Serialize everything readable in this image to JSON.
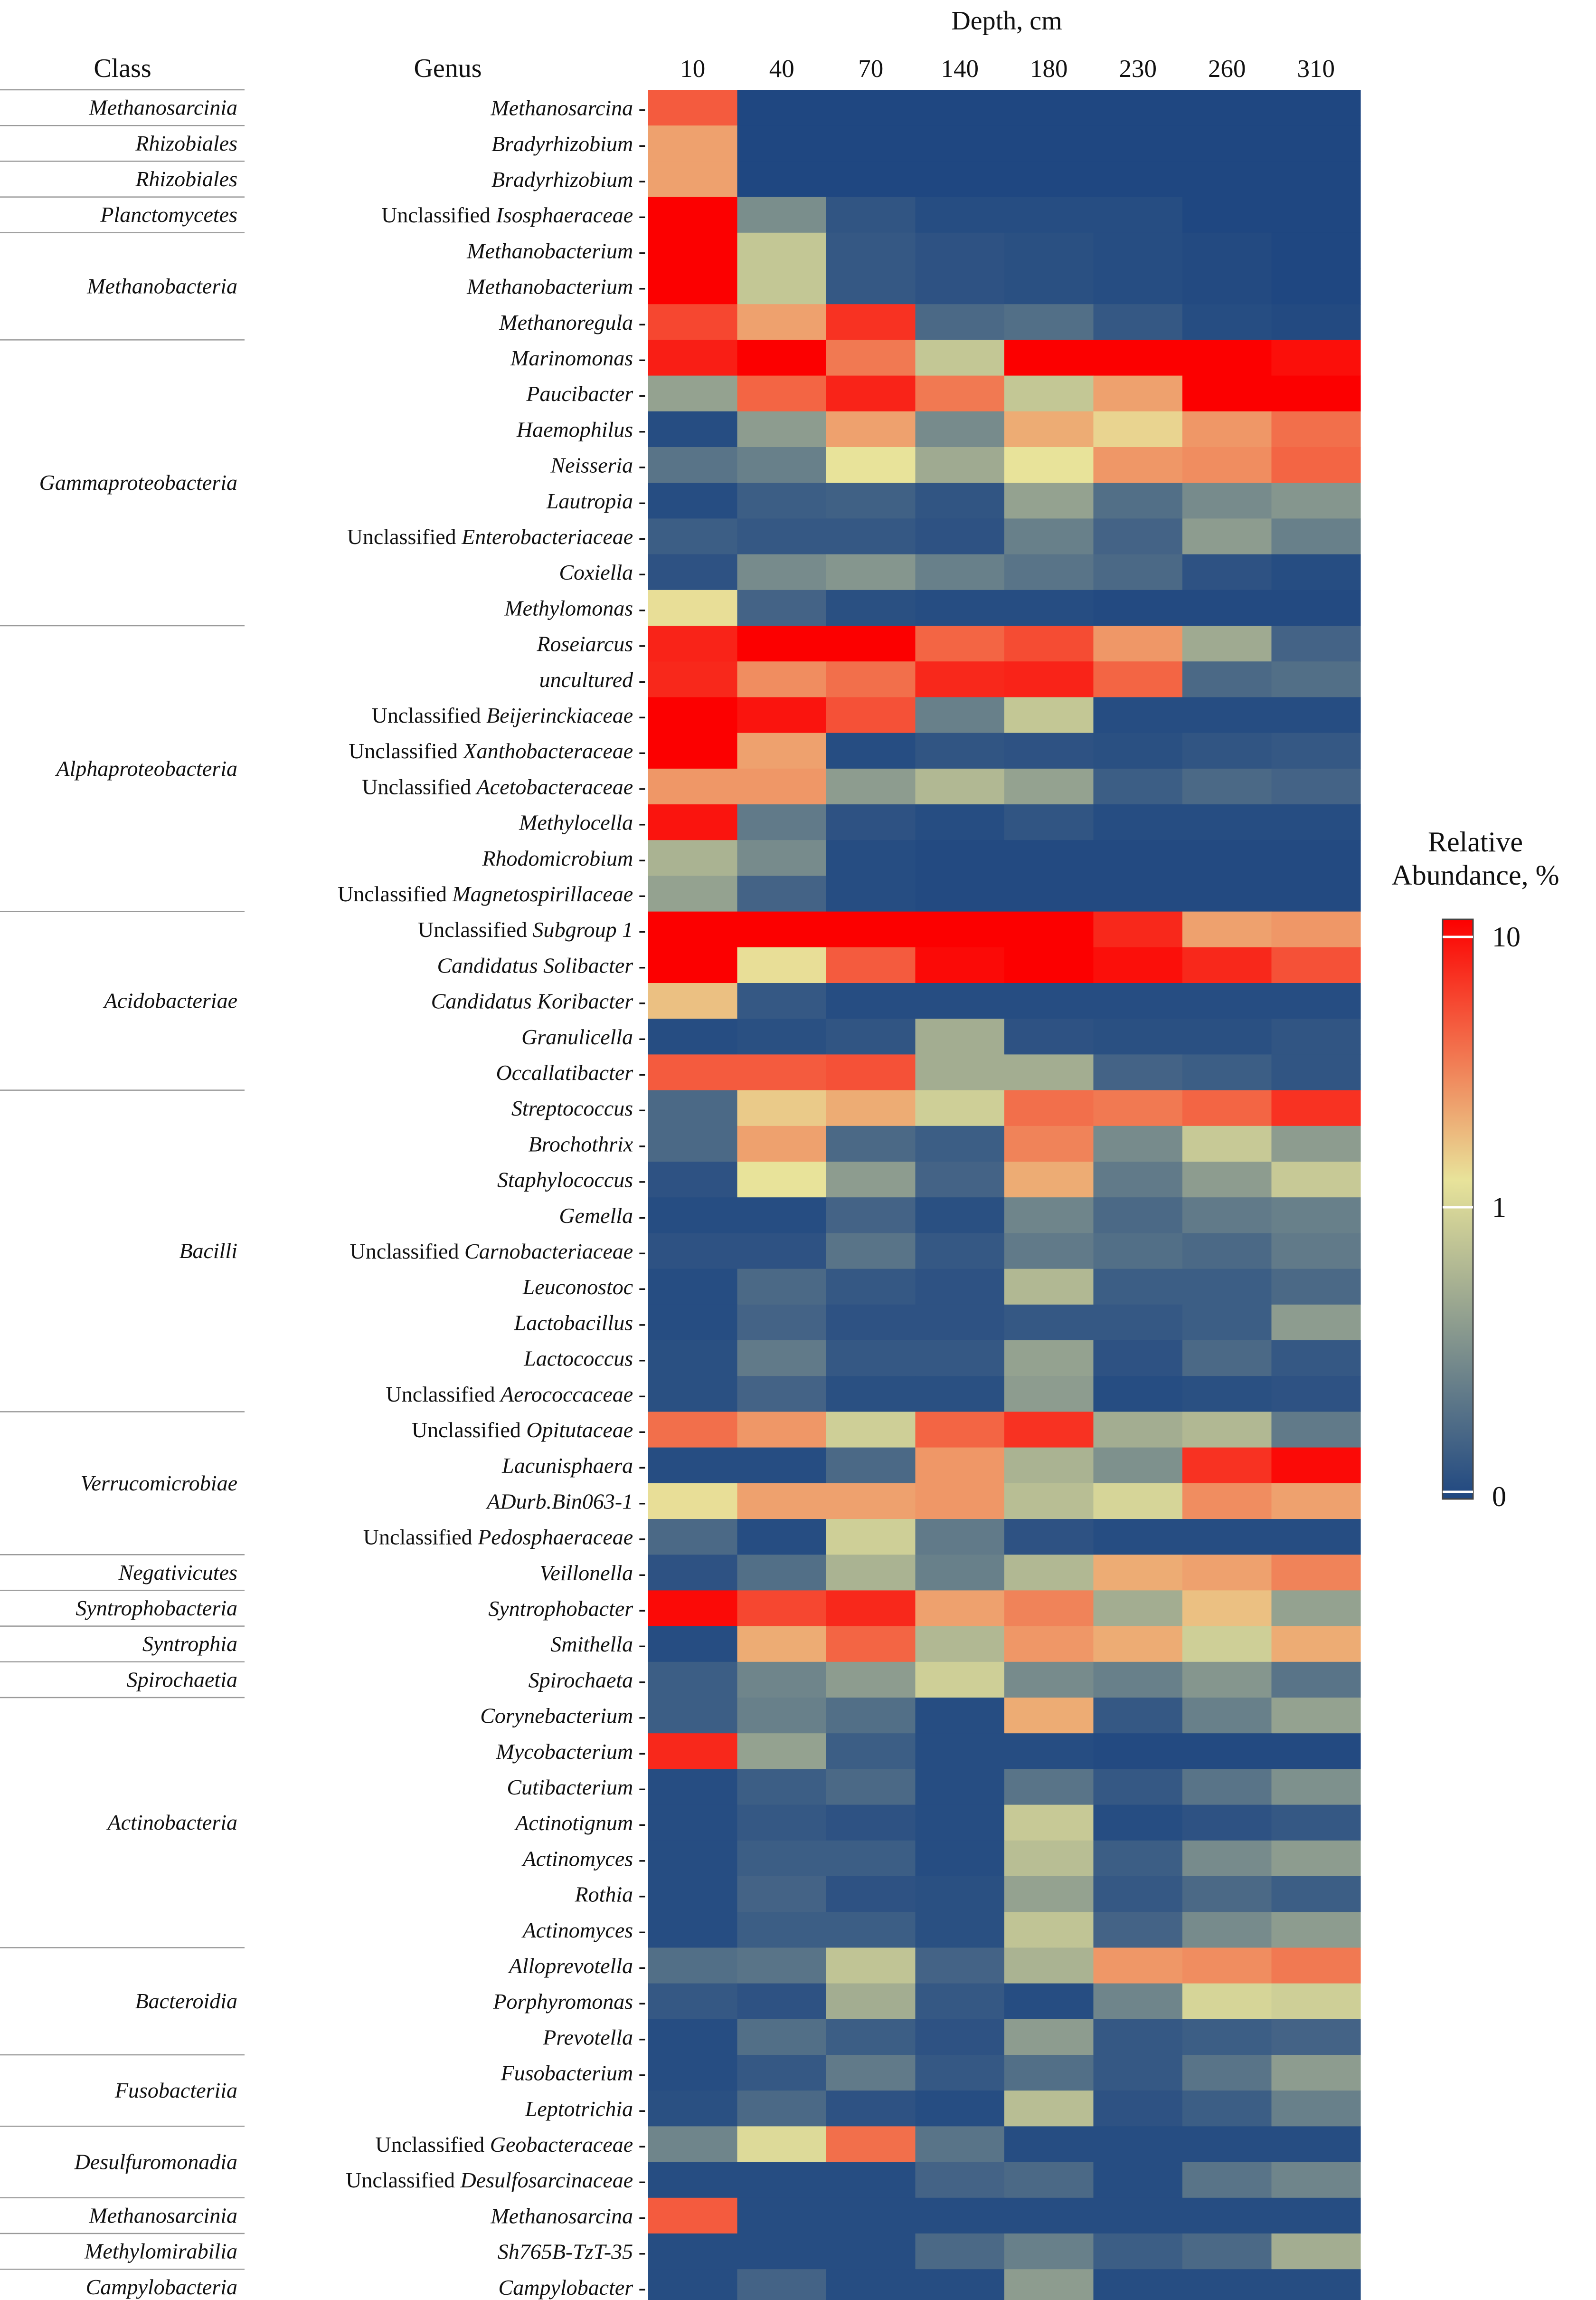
{
  "chart_data": {
    "type": "heatmap",
    "title": "Depth, cm",
    "class_header": "Class",
    "genus_header": "Genus",
    "x": [
      "10",
      "40",
      "70",
      "140",
      "180",
      "230",
      "260",
      "310"
    ],
    "legend": {
      "title_line1": "Relative",
      "title_line2": "Abundance, %",
      "ticks": [
        "10",
        "1",
        "0"
      ],
      "colors": [
        "#1f4781",
        "#e8e39a",
        "#fc0000"
      ]
    },
    "classes": [
      {
        "name": "Methanosarcinia",
        "rows": 1
      },
      {
        "name": "Rhizobiales",
        "rows": 1
      },
      {
        "name": "Rhizobiales",
        "rows": 1
      },
      {
        "name": "Planctomycetes",
        "rows": 1
      },
      {
        "name": "Methanobacteria",
        "rows": 3
      },
      {
        "name": "Gammaproteobacteria",
        "rows": 8
      },
      {
        "name": "Alphaproteobacteria",
        "rows": 8
      },
      {
        "name": "Acidobacteriae",
        "rows": 5
      },
      {
        "name": "Bacilli",
        "rows": 9
      },
      {
        "name": "Verrucomicrobiae",
        "rows": 4
      },
      {
        "name": "Negativicutes",
        "rows": 1
      },
      {
        "name": "Syntrophobacteria",
        "rows": 1
      },
      {
        "name": "Syntrophia",
        "rows": 1
      },
      {
        "name": "Spirochaetia",
        "rows": 1
      },
      {
        "name": "Actinobacteria",
        "rows": 7
      },
      {
        "name": "Bacteroidia",
        "rows": 3
      },
      {
        "name": "Fusobacteriia",
        "rows": 2
      },
      {
        "name": "Desulfuromonadia",
        "rows": 2
      },
      {
        "name": "Methanosarcinia",
        "rows": 1
      },
      {
        "name": "Methylomirabilia",
        "rows": 1
      },
      {
        "name": "Campylobacteria",
        "rows": 1
      }
    ],
    "rows": [
      {
        "prefix": "",
        "genus": "Methanosarcina",
        "values": [
          0.82,
          0,
          0,
          0,
          0,
          0,
          0,
          0
        ]
      },
      {
        "prefix": "",
        "genus": "Bradyrhizobium",
        "values": [
          0.68,
          0,
          0,
          0,
          0,
          0,
          0,
          0
        ]
      },
      {
        "prefix": "",
        "genus": "Bradyrhizobium",
        "values": [
          0.68,
          0,
          0,
          0,
          0,
          0,
          0,
          0
        ]
      },
      {
        "prefix": "Unclassified ",
        "genus": "Isosphaeraceae",
        "values": [
          1.0,
          0.25,
          0.05,
          0.02,
          0.02,
          0.02,
          0.0,
          0.0
        ]
      },
      {
        "prefix": "",
        "genus": "Methanobacterium",
        "values": [
          1.0,
          0.45,
          0.06,
          0.04,
          0.03,
          0.02,
          0.01,
          0.0
        ]
      },
      {
        "prefix": "",
        "genus": "Methanobacterium",
        "values": [
          1.0,
          0.45,
          0.06,
          0.04,
          0.03,
          0.02,
          0.01,
          0.0
        ]
      },
      {
        "prefix": "",
        "genus": "Methanoregula",
        "values": [
          0.86,
          0.68,
          0.9,
          0.12,
          0.14,
          0.06,
          0.02,
          0.01
        ]
      },
      {
        "prefix": "",
        "genus": "Marinomonas",
        "values": [
          0.94,
          1.0,
          0.76,
          0.45,
          1.0,
          1.0,
          1.0,
          0.97
        ]
      },
      {
        "prefix": "",
        "genus": "Paucibacter",
        "values": [
          0.32,
          0.8,
          0.93,
          0.76,
          0.45,
          0.68,
          1.0,
          1.0
        ]
      },
      {
        "prefix": "",
        "genus": "Haemophilus",
        "values": [
          0.02,
          0.3,
          0.68,
          0.24,
          0.66,
          0.58,
          0.7,
          0.78
        ]
      },
      {
        "prefix": "",
        "genus": "Neisseria",
        "values": [
          0.16,
          0.2,
          0.55,
          0.35,
          0.55,
          0.7,
          0.72,
          0.8
        ]
      },
      {
        "prefix": "",
        "genus": "Lautropia",
        "values": [
          0.02,
          0.08,
          0.09,
          0.05,
          0.32,
          0.14,
          0.24,
          0.28
        ]
      },
      {
        "prefix": "Unclassified ",
        "genus": "Enterobacteriaceae",
        "values": [
          0.08,
          0.06,
          0.06,
          0.04,
          0.2,
          0.1,
          0.3,
          0.2
        ]
      },
      {
        "prefix": "",
        "genus": "Coxiella",
        "values": [
          0.04,
          0.24,
          0.28,
          0.2,
          0.16,
          0.12,
          0.04,
          0.02
        ]
      },
      {
        "prefix": "",
        "genus": "Methylomonas",
        "values": [
          0.56,
          0.1,
          0.03,
          0.02,
          0.02,
          0.01,
          0.01,
          0.01
        ]
      },
      {
        "prefix": "",
        "genus": "Roseiarcus",
        "values": [
          0.93,
          1.0,
          1.0,
          0.8,
          0.85,
          0.7,
          0.35,
          0.1
        ]
      },
      {
        "prefix": "",
        "genus": "uncultured",
        "values": [
          0.92,
          0.72,
          0.78,
          0.92,
          0.93,
          0.8,
          0.12,
          0.14
        ]
      },
      {
        "prefix": "Unclassified ",
        "genus": "Beijerinckiaceae",
        "values": [
          1.0,
          0.96,
          0.84,
          0.2,
          0.45,
          0.02,
          0.02,
          0.02
        ]
      },
      {
        "prefix": "Unclassified ",
        "genus": "Xanthobacteraceae",
        "values": [
          1.0,
          0.68,
          0.02,
          0.05,
          0.04,
          0.03,
          0.05,
          0.06
        ]
      },
      {
        "prefix": "Unclassified ",
        "genus": "Acetobacteraceae",
        "values": [
          0.7,
          0.7,
          0.3,
          0.4,
          0.32,
          0.08,
          0.12,
          0.1
        ]
      },
      {
        "prefix": "",
        "genus": "Methylocella",
        "values": [
          0.96,
          0.18,
          0.04,
          0.02,
          0.05,
          0.02,
          0.02,
          0.02
        ]
      },
      {
        "prefix": "",
        "genus": "Rhodomicrobium",
        "values": [
          0.38,
          0.24,
          0.02,
          0.01,
          0.01,
          0.01,
          0.01,
          0.01
        ]
      },
      {
        "prefix": "Unclassified ",
        "genus": "Magnetospirillaceae",
        "values": [
          0.32,
          0.1,
          0.02,
          0.01,
          0.01,
          0.01,
          0.01,
          0.01
        ]
      },
      {
        "prefix": "Unclassified ",
        "genus": "Subgroup 1",
        "values": [
          1.0,
          1.0,
          1.0,
          1.0,
          1.0,
          0.92,
          0.68,
          0.7
        ]
      },
      {
        "prefix": "",
        "genus": "Candidatus Solibacter",
        "values": [
          1.0,
          0.56,
          0.82,
          0.98,
          1.0,
          0.97,
          0.92,
          0.84
        ]
      },
      {
        "prefix": "",
        "genus": "Candidatus Koribacter",
        "values": [
          0.62,
          0.06,
          0.02,
          0.02,
          0.02,
          0.02,
          0.02,
          0.02
        ]
      },
      {
        "prefix": "",
        "genus": "Granulicella",
        "values": [
          0.02,
          0.03,
          0.05,
          0.36,
          0.04,
          0.03,
          0.03,
          0.05
        ]
      },
      {
        "prefix": "",
        "genus": "Occallatibacter",
        "values": [
          0.82,
          0.82,
          0.84,
          0.36,
          0.36,
          0.1,
          0.08,
          0.05
        ]
      },
      {
        "prefix": "",
        "genus": "Streptococcus",
        "values": [
          0.12,
          0.6,
          0.66,
          0.48,
          0.78,
          0.76,
          0.8,
          0.9
        ]
      },
      {
        "prefix": "",
        "genus": "Brochothrix",
        "values": [
          0.12,
          0.68,
          0.12,
          0.08,
          0.74,
          0.24,
          0.46,
          0.3
        ]
      },
      {
        "prefix": "",
        "genus": "Staphylococcus",
        "values": [
          0.04,
          0.55,
          0.3,
          0.1,
          0.66,
          0.18,
          0.3,
          0.46
        ]
      },
      {
        "prefix": "",
        "genus": "Gemella",
        "values": [
          0.02,
          0.02,
          0.1,
          0.03,
          0.22,
          0.12,
          0.18,
          0.2
        ]
      },
      {
        "prefix": "Unclassified ",
        "genus": "Carnobacteriaceae",
        "values": [
          0.04,
          0.04,
          0.16,
          0.06,
          0.18,
          0.14,
          0.12,
          0.18
        ]
      },
      {
        "prefix": "",
        "genus": "Leuconostoc",
        "values": [
          0.02,
          0.12,
          0.06,
          0.04,
          0.4,
          0.08,
          0.08,
          0.12
        ]
      },
      {
        "prefix": "",
        "genus": "Lactobacillus",
        "values": [
          0.02,
          0.1,
          0.04,
          0.04,
          0.06,
          0.06,
          0.08,
          0.3
        ]
      },
      {
        "prefix": "",
        "genus": "Lactococcus",
        "values": [
          0.03,
          0.18,
          0.06,
          0.06,
          0.32,
          0.04,
          0.12,
          0.06
        ]
      },
      {
        "prefix": "Unclassified ",
        "genus": "Aerococcaceae",
        "values": [
          0.03,
          0.1,
          0.03,
          0.03,
          0.3,
          0.02,
          0.03,
          0.04
        ]
      },
      {
        "prefix": "Unclassified ",
        "genus": "Opitutaceae",
        "values": [
          0.78,
          0.7,
          0.48,
          0.8,
          0.9,
          0.36,
          0.4,
          0.18
        ]
      },
      {
        "prefix": "",
        "genus": "Lacunisphaera",
        "values": [
          0.02,
          0.02,
          0.12,
          0.7,
          0.38,
          0.26,
          0.9,
          0.98
        ]
      },
      {
        "prefix": "",
        "genus": "ADurb.Bin063-1",
        "values": [
          0.56,
          0.68,
          0.68,
          0.7,
          0.42,
          0.5,
          0.72,
          0.68
        ]
      },
      {
        "prefix": "Unclassified ",
        "genus": "Pedosphaeraceae",
        "values": [
          0.12,
          0.02,
          0.48,
          0.18,
          0.04,
          0.02,
          0.02,
          0.02
        ]
      },
      {
        "prefix": "",
        "genus": "Veillonella",
        "values": [
          0.04,
          0.14,
          0.38,
          0.2,
          0.4,
          0.66,
          0.68,
          0.74
        ]
      },
      {
        "prefix": "",
        "genus": "Syntrophobacter",
        "values": [
          0.98,
          0.86,
          0.92,
          0.68,
          0.74,
          0.36,
          0.62,
          0.32
        ]
      },
      {
        "prefix": "",
        "genus": "Smithella",
        "values": [
          0.02,
          0.66,
          0.8,
          0.4,
          0.7,
          0.66,
          0.48,
          0.66
        ]
      },
      {
        "prefix": "",
        "genus": "Spirochaeta",
        "values": [
          0.08,
          0.22,
          0.3,
          0.48,
          0.24,
          0.2,
          0.28,
          0.16
        ]
      },
      {
        "prefix": "",
        "genus": "Corynebacterium",
        "values": [
          0.08,
          0.2,
          0.14,
          0.02,
          0.66,
          0.06,
          0.2,
          0.32
        ]
      },
      {
        "prefix": "",
        "genus": "Mycobacterium",
        "values": [
          0.92,
          0.32,
          0.08,
          0.02,
          0.02,
          0.01,
          0.01,
          0.01
        ]
      },
      {
        "prefix": "",
        "genus": "Cutibacterium",
        "values": [
          0.02,
          0.08,
          0.12,
          0.02,
          0.16,
          0.06,
          0.16,
          0.26
        ]
      },
      {
        "prefix": "",
        "genus": "Actinotignum",
        "values": [
          0.02,
          0.06,
          0.04,
          0.02,
          0.46,
          0.02,
          0.04,
          0.06
        ]
      },
      {
        "prefix": "",
        "genus": "Actinomyces",
        "values": [
          0.02,
          0.08,
          0.08,
          0.02,
          0.42,
          0.08,
          0.24,
          0.3
        ]
      },
      {
        "prefix": "",
        "genus": "Rothia",
        "values": [
          0.02,
          0.1,
          0.04,
          0.03,
          0.32,
          0.06,
          0.12,
          0.08
        ]
      },
      {
        "prefix": "",
        "genus": "Actinomyces",
        "values": [
          0.02,
          0.08,
          0.08,
          0.03,
          0.44,
          0.1,
          0.24,
          0.3
        ]
      },
      {
        "prefix": "",
        "genus": "Alloprevotella",
        "values": [
          0.14,
          0.16,
          0.44,
          0.1,
          0.38,
          0.7,
          0.72,
          0.76
        ]
      },
      {
        "prefix": "",
        "genus": "Porphyromonas",
        "values": [
          0.06,
          0.04,
          0.36,
          0.06,
          0.02,
          0.22,
          0.5,
          0.48
        ]
      },
      {
        "prefix": "",
        "genus": "Prevotella",
        "values": [
          0.02,
          0.14,
          0.08,
          0.04,
          0.3,
          0.06,
          0.08,
          0.1
        ]
      },
      {
        "prefix": "",
        "genus": "Fusobacterium",
        "values": [
          0.02,
          0.06,
          0.18,
          0.06,
          0.14,
          0.06,
          0.16,
          0.3
        ]
      },
      {
        "prefix": "",
        "genus": "Leptotrichia",
        "values": [
          0.03,
          0.12,
          0.04,
          0.02,
          0.42,
          0.04,
          0.08,
          0.2
        ]
      },
      {
        "prefix": "Unclassified ",
        "genus": "Geobacteraceae",
        "values": [
          0.22,
          0.52,
          0.78,
          0.16,
          0.02,
          0.02,
          0.02,
          0.02
        ]
      },
      {
        "prefix": "Unclassified ",
        "genus": "Desulfosarcinaceae",
        "values": [
          0.02,
          0.02,
          0.02,
          0.1,
          0.12,
          0.02,
          0.16,
          0.22
        ]
      },
      {
        "prefix": "",
        "genus": "Methanosarcina",
        "values": [
          0.82,
          0.02,
          0.02,
          0.02,
          0.02,
          0.02,
          0.02,
          0.02
        ]
      },
      {
        "prefix": "",
        "genus": "Sh765B-TzT-35",
        "values": [
          0.02,
          0.02,
          0.02,
          0.12,
          0.2,
          0.08,
          0.12,
          0.36
        ]
      },
      {
        "prefix": "",
        "genus": "Campylobacter",
        "values": [
          0.02,
          0.1,
          0.02,
          0.02,
          0.3,
          0.02,
          0.02,
          0.02
        ]
      }
    ]
  }
}
